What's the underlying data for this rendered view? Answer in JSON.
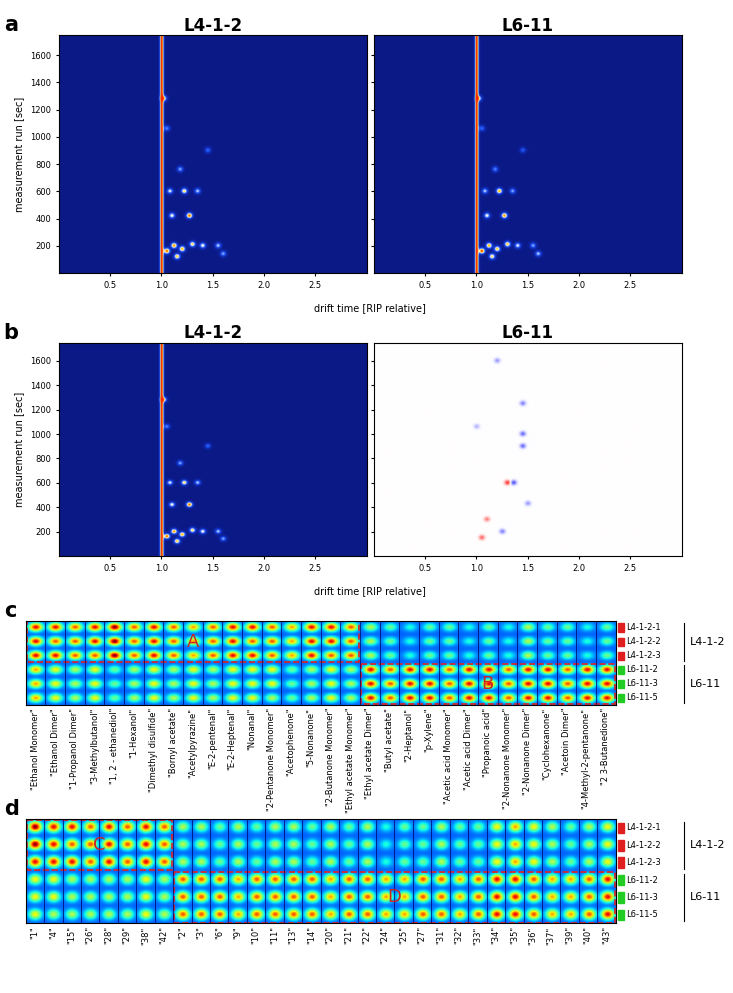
{
  "chart_data": [
    {
      "panel": "a",
      "type": "heatmap",
      "xlabel": "drift time [RIP relative]",
      "ylabel": "measurement run [sec]",
      "xlim": [
        0,
        3
      ],
      "ylim": [
        0,
        1750
      ],
      "xticks": [
        {
          "value": 0.5,
          "label": "0.5"
        },
        {
          "value": 1,
          "label": "1.0"
        },
        {
          "value": 1.5,
          "label": "1.5"
        },
        {
          "value": 2,
          "label": "2.0"
        },
        {
          "value": 2.5,
          "label": "2.5"
        }
      ],
      "yticks": [
        200,
        400,
        600,
        800,
        1000,
        1200,
        1400,
        1600
      ],
      "rip_drift": 1.0,
      "spectra": [
        {
          "name": "L4-1-2",
          "mode": "intensity",
          "color_range": [
            0,
            1
          ],
          "peaks": [
            [
              1.05,
              160,
              0.9
            ],
            [
              1.12,
              200,
              0.85
            ],
            [
              1.2,
              175,
              0.8
            ],
            [
              1.3,
              210,
              0.7
            ],
            [
              1.15,
              120,
              0.75
            ],
            [
              1.4,
              200,
              0.6
            ],
            [
              1.27,
              420,
              0.9
            ],
            [
              1.1,
              420,
              0.6
            ],
            [
              1.22,
              600,
              0.7
            ],
            [
              1.08,
              600,
              0.55
            ],
            [
              1.35,
              600,
              0.5
            ],
            [
              1.18,
              760,
              0.45
            ],
            [
              1.05,
              1060,
              0.4
            ],
            [
              1.02,
              1280,
              0.65
            ],
            [
              1.45,
              900,
              0.35
            ],
            [
              1.55,
              200,
              0.5
            ],
            [
              1.6,
              140,
              0.45
            ]
          ]
        },
        {
          "name": "L6-11",
          "mode": "intensity",
          "color_range": [
            0,
            1
          ],
          "peaks": [
            [
              1.05,
              160,
              0.95
            ],
            [
              1.12,
              200,
              0.8
            ],
            [
              1.2,
              175,
              0.75
            ],
            [
              1.3,
              210,
              0.75
            ],
            [
              1.15,
              120,
              0.7
            ],
            [
              1.4,
              200,
              0.55
            ],
            [
              1.27,
              420,
              0.85
            ],
            [
              1.1,
              420,
              0.6
            ],
            [
              1.22,
              600,
              0.8
            ],
            [
              1.08,
              600,
              0.5
            ],
            [
              1.35,
              600,
              0.45
            ],
            [
              1.18,
              760,
              0.4
            ],
            [
              1.05,
              1060,
              0.35
            ],
            [
              1.02,
              1280,
              0.6
            ],
            [
              1.45,
              900,
              0.3
            ],
            [
              1.55,
              200,
              0.45
            ],
            [
              1.6,
              140,
              0.5
            ]
          ]
        }
      ]
    },
    {
      "panel": "b",
      "type": "heatmap",
      "xlabel": "drift time [RIP relative]",
      "ylabel": "measurement run [sec]",
      "xlim": [
        0,
        3
      ],
      "ylim": [
        0,
        1750
      ],
      "xticks": [
        {
          "value": 0.5,
          "label": "0.5"
        },
        {
          "value": 1,
          "label": "1.0"
        },
        {
          "value": 1.5,
          "label": "1.5"
        },
        {
          "value": 2,
          "label": "2.0"
        },
        {
          "value": 2.5,
          "label": "2.5"
        }
      ],
      "yticks": [
        200,
        400,
        600,
        800,
        1000,
        1200,
        1400,
        1600
      ],
      "rip_drift": 1.0,
      "spectra": [
        {
          "name": "L4-1-2",
          "mode": "intensity",
          "color_range": [
            0,
            1
          ],
          "peaks": [
            [
              1.05,
              160,
              0.9
            ],
            [
              1.12,
              200,
              0.85
            ],
            [
              1.2,
              175,
              0.8
            ],
            [
              1.3,
              210,
              0.7
            ],
            [
              1.15,
              120,
              0.75
            ],
            [
              1.4,
              200,
              0.6
            ],
            [
              1.27,
              420,
              0.9
            ],
            [
              1.1,
              420,
              0.6
            ],
            [
              1.22,
              600,
              0.7
            ],
            [
              1.08,
              600,
              0.55
            ],
            [
              1.35,
              600,
              0.5
            ],
            [
              1.18,
              760,
              0.45
            ],
            [
              1.05,
              1060,
              0.4
            ],
            [
              1.02,
              1280,
              0.65
            ],
            [
              1.45,
              900,
              0.35
            ],
            [
              1.55,
              200,
              0.5
            ],
            [
              1.6,
              140,
              0.45
            ]
          ]
        },
        {
          "name": "L6-11",
          "mode": "difference",
          "color_range": [
            -1,
            1
          ],
          "peaks": [
            [
              1.3,
              600,
              0.8
            ],
            [
              1.36,
              600,
              -0.7
            ],
            [
              1.45,
              900,
              -0.6
            ],
            [
              1.45,
              1000,
              -0.6
            ],
            [
              1.45,
              1250,
              -0.5
            ],
            [
              1.2,
              1600,
              -0.4
            ],
            [
              1.1,
              300,
              0.5
            ],
            [
              1.25,
              200,
              -0.5
            ],
            [
              1.05,
              150,
              0.6
            ],
            [
              1.5,
              430,
              -0.4
            ],
            [
              1.0,
              1060,
              -0.3
            ]
          ]
        }
      ]
    },
    {
      "panel": "c",
      "type": "fingerprint",
      "rows": [
        "L4-1-2-1",
        "L4-1-2-2",
        "L4-1-2-3",
        "L6-11-2",
        "L6-11-3",
        "L6-11-5"
      ],
      "groups": [
        {
          "name": "L4-1-2",
          "color": "#e02020",
          "rows": [
            0,
            2
          ]
        },
        {
          "name": "L6-11",
          "color": "#22cc22",
          "rows": [
            3,
            5
          ]
        }
      ],
      "columns": [
        "\"Ethanol Monomer\"",
        "\"Ethanol Dimer\"",
        "\"1-Propanol Dimer\"",
        "\"3-Methylbutanol\"",
        "\"1, 2 - ethanediol\"",
        "\"1-Hexanol\"",
        "\"Dimethyl disulfide\"",
        "\"Bornyl acetate\"",
        "\"Acetylpyrazine\"",
        "\"E-2-pentenal\"",
        "\"E-2-Heptenal\"",
        "\"Nonanal\"",
        "\"2-Pentanone Monomer\"",
        "\"Acetophenone\"",
        "\"5-Nonanone\"",
        "\"2-Butanone Monomer\"",
        "\"Ethyl acetate Monomer\"",
        "\"Ethyl acetate Dimer\"",
        "\"Butyl acetate\"",
        "\"2-Heptanol\"",
        "\"p-Xylene\"",
        "\"Acetic acid Monomer\"",
        "\"Acetic acid Dimer\"",
        "\"Propanoic acid\"",
        "\"2-Nonanone Monomer\"",
        "\"2-Nonanone Dimer\"",
        "\"Cyclohexanone\"",
        "\"Acetoin Dimer\"",
        "\"4-Methyl-2-pentanone\"",
        "\"2 3-Butanedione\""
      ],
      "value_range": [
        0,
        9
      ],
      "values": [
        [
          8,
          8,
          7,
          8,
          9,
          7,
          8,
          7,
          6,
          7,
          8,
          8,
          7,
          6,
          8,
          8,
          7,
          4,
          3,
          2,
          3,
          3,
          2,
          3,
          2,
          4,
          3,
          3,
          2,
          3
        ],
        [
          8,
          7,
          7,
          8,
          9,
          7,
          8,
          7,
          6,
          7,
          8,
          7,
          7,
          6,
          8,
          8,
          7,
          4,
          3,
          2,
          3,
          3,
          2,
          3,
          2,
          4,
          3,
          3,
          2,
          3
        ],
        [
          8,
          8,
          7,
          7,
          9,
          7,
          8,
          7,
          6,
          7,
          8,
          8,
          7,
          6,
          8,
          7,
          7,
          4,
          3,
          2,
          3,
          3,
          2,
          3,
          2,
          4,
          3,
          3,
          2,
          3
        ],
        [
          6,
          5,
          4,
          5,
          3,
          4,
          5,
          4,
          5,
          4,
          5,
          5,
          5,
          3,
          4,
          5,
          4,
          8,
          7,
          8,
          8,
          7,
          8,
          8,
          7,
          8,
          8,
          7,
          8,
          8
        ],
        [
          6,
          5,
          4,
          5,
          3,
          4,
          5,
          4,
          5,
          4,
          5,
          5,
          5,
          3,
          4,
          5,
          4,
          8,
          7,
          8,
          8,
          7,
          8,
          8,
          7,
          8,
          8,
          7,
          8,
          8
        ],
        [
          6,
          5,
          4,
          5,
          3,
          4,
          5,
          4,
          5,
          4,
          5,
          5,
          4,
          3,
          4,
          5,
          4,
          8,
          7,
          8,
          8,
          7,
          8,
          8,
          7,
          8,
          8,
          7,
          8,
          8
        ]
      ],
      "boxes": [
        {
          "label": "A",
          "columns": [
            0,
            16
          ],
          "rows": [
            0,
            2
          ]
        },
        {
          "label": "B",
          "columns": [
            17,
            29
          ],
          "rows": [
            3,
            5
          ]
        }
      ]
    },
    {
      "panel": "d",
      "type": "fingerprint",
      "rows": [
        "L4-1-2-1",
        "L4-1-2-2",
        "L4-1-2-3",
        "L6-11-2",
        "L6-11-3",
        "L6-11-5"
      ],
      "groups": [
        {
          "name": "L4-1-2",
          "color": "#e02020",
          "rows": [
            0,
            2
          ]
        },
        {
          "name": "L6-11",
          "color": "#22cc22",
          "rows": [
            3,
            5
          ]
        }
      ],
      "columns": [
        "\"1\"",
        "\"4\"",
        "\"15\"",
        "\"26\"",
        "\"28\"",
        "\"29\"",
        "\"38\"",
        "\"42\"",
        "\"2\"",
        "\"3\"",
        "\"6\"",
        "\"9\"",
        "\"10\"",
        "\"11\"",
        "\"13\"",
        "\"14\"",
        "\"20\"",
        "\"21\"",
        "\"22\"",
        "\"24\"",
        "\"25\"",
        "\"27\"",
        "\"31\"",
        "\"32\"",
        "\"33\"",
        "\"34\"",
        "\"35\"",
        "\"36\"",
        "\"37\"",
        "\"39\"",
        "\"40\"",
        "\"43\""
      ],
      "value_range": [
        0,
        9
      ],
      "values": [
        [
          9,
          8,
          8,
          7,
          8,
          7,
          8,
          7,
          4,
          4,
          3,
          4,
          3,
          4,
          4,
          3,
          4,
          3,
          4,
          2,
          3,
          3,
          4,
          3,
          3,
          5,
          6,
          5,
          4,
          3,
          4,
          5
        ],
        [
          9,
          8,
          7,
          7,
          8,
          7,
          8,
          7,
          4,
          4,
          3,
          4,
          3,
          4,
          4,
          3,
          4,
          3,
          4,
          2,
          3,
          3,
          4,
          3,
          3,
          5,
          6,
          5,
          4,
          3,
          4,
          5
        ],
        [
          8,
          8,
          8,
          7,
          8,
          7,
          8,
          7,
          4,
          4,
          3,
          4,
          3,
          4,
          4,
          3,
          4,
          3,
          4,
          2,
          3,
          3,
          4,
          3,
          3,
          5,
          6,
          5,
          4,
          3,
          4,
          5
        ],
        [
          5,
          5,
          4,
          4,
          4,
          4,
          5,
          4,
          7,
          7,
          7,
          6,
          7,
          7,
          7,
          7,
          6,
          7,
          7,
          6,
          6,
          7,
          7,
          6,
          7,
          8,
          8,
          7,
          6,
          6,
          7,
          8
        ],
        [
          5,
          5,
          4,
          4,
          4,
          4,
          5,
          4,
          7,
          7,
          7,
          6,
          7,
          7,
          7,
          7,
          6,
          7,
          7,
          6,
          6,
          7,
          7,
          6,
          7,
          8,
          8,
          7,
          6,
          6,
          7,
          8
        ],
        [
          5,
          4,
          4,
          4,
          4,
          4,
          5,
          4,
          7,
          7,
          7,
          6,
          7,
          7,
          7,
          7,
          6,
          7,
          7,
          6,
          6,
          7,
          7,
          6,
          7,
          8,
          8,
          7,
          6,
          6,
          7,
          8
        ]
      ],
      "boxes": [
        {
          "label": "C",
          "columns": [
            0,
            7
          ],
          "rows": [
            0,
            2
          ]
        },
        {
          "label": "D",
          "columns": [
            8,
            31
          ],
          "rows": [
            3,
            5
          ]
        }
      ]
    }
  ]
}
